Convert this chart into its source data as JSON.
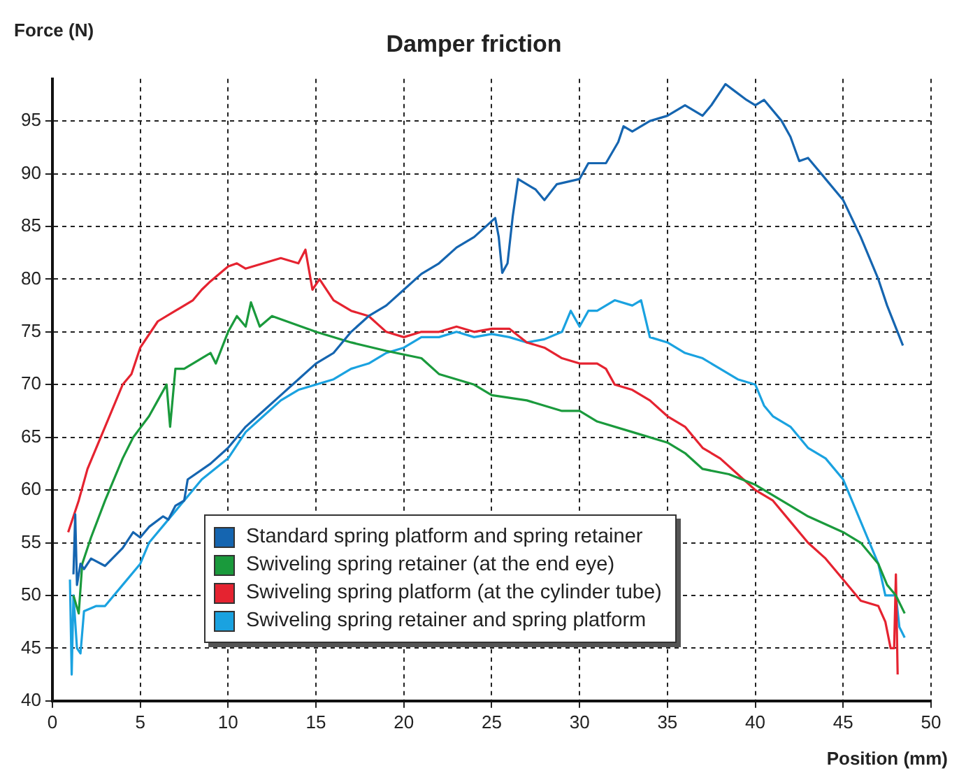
{
  "chart_data": {
    "type": "line",
    "title": "Damper friction",
    "xlabel": "Position (mm)",
    "ylabel": "Force (N)",
    "xlim": [
      0,
      50
    ],
    "xticks": [
      0,
      5,
      10,
      15,
      20,
      25,
      30,
      35,
      40,
      45,
      50
    ],
    "ylim": [
      40,
      99
    ],
    "yticks": [
      40,
      45,
      50,
      55,
      60,
      65,
      70,
      75,
      80,
      85,
      90,
      95
    ],
    "grid": true,
    "legend": "bottom left",
    "marker": "none",
    "line_style": "solid",
    "series": [
      {
        "name": "Standard spring platform and spring retainer",
        "color": "#1565b0",
        "x": [
          1.2,
          1.3,
          1.4,
          1.6,
          1.8,
          2.2,
          3,
          4,
          4.6,
          5,
          5.5,
          6.3,
          6.6,
          7,
          7.5,
          7.7,
          9,
          10,
          11,
          12,
          13,
          14,
          15,
          16,
          17,
          18,
          19,
          20,
          21,
          22,
          23,
          24,
          25.2,
          25.4,
          25.6,
          25.9,
          26.2,
          26.5,
          27.5,
          28,
          28.7,
          30,
          30.5,
          31.5,
          32.2,
          32.5,
          33,
          34,
          35,
          36,
          37,
          37.5,
          38.3,
          38.7,
          39.5,
          40,
          40.5,
          41.5,
          42,
          42.5,
          43,
          44,
          45,
          46,
          47,
          47.5,
          48.4
        ],
        "values": [
          52,
          57.7,
          51,
          53,
          52.5,
          53.5,
          52.8,
          54.5,
          56,
          55.5,
          56.5,
          57.5,
          57.2,
          58.5,
          59,
          61,
          62.5,
          64,
          66,
          67.5,
          69,
          70.5,
          72,
          73,
          75,
          76.5,
          77.5,
          79,
          80.5,
          81.5,
          83,
          84,
          85.8,
          84,
          80.6,
          81.5,
          86,
          89.5,
          88.5,
          87.5,
          89,
          89.5,
          91,
          91,
          93,
          94.5,
          94,
          95,
          95.5,
          96.5,
          95.5,
          96.5,
          98.5,
          98,
          97,
          96.5,
          97,
          95,
          93.5,
          91.2,
          91.5,
          89.5,
          87.5,
          84,
          80,
          77.5,
          73.7
        ]
      },
      {
        "name": "Swiveling spring retainer (at the end eye)",
        "color": "#1a9a3c",
        "x": [
          1.2,
          1.5,
          1.7,
          2.2,
          3,
          4,
          4.6,
          5.5,
          6,
          6.5,
          6.7,
          7,
          7.5,
          8,
          9,
          9.3,
          10,
          10.5,
          11,
          11.3,
          11.8,
          12.5,
          15,
          17,
          19,
          21,
          22,
          24,
          25,
          27,
          29,
          30,
          31,
          33,
          35,
          36,
          37,
          38.5,
          40,
          41,
          42,
          43,
          45,
          46,
          47,
          47.5,
          48,
          48.5
        ],
        "values": [
          50,
          48.3,
          53,
          55.5,
          59,
          63,
          65,
          67,
          68.5,
          70,
          66,
          71.5,
          71.5,
          72,
          73,
          72,
          75,
          76.5,
          75.5,
          77.8,
          75.5,
          76.5,
          75,
          74,
          73.2,
          72.5,
          71,
          70,
          69,
          68.5,
          67.5,
          67.5,
          66.5,
          65.5,
          64.5,
          63.5,
          62,
          61.5,
          60.5,
          59.5,
          58.5,
          57.5,
          56,
          55,
          53,
          51,
          50,
          48.3
        ]
      },
      {
        "name": "Swiveling spring platform (at the cylinder tube)",
        "color": "#e52330",
        "x": [
          0.9,
          1.5,
          2,
          3,
          4,
          4.5,
          5,
          6,
          7,
          8,
          8.5,
          9,
          10,
          10.5,
          11,
          12,
          13,
          14,
          14.4,
          14.8,
          15.2,
          16,
          17,
          18,
          19,
          20,
          21,
          22,
          23,
          24,
          25,
          26,
          27,
          28,
          29,
          30,
          31,
          31.5,
          32,
          33,
          34,
          35,
          36,
          37,
          38,
          39,
          40,
          41,
          42,
          43,
          44,
          45,
          46,
          47,
          47.4,
          47.7,
          47.9,
          48,
          48.1
        ],
        "values": [
          56,
          59,
          62,
          66,
          70,
          71,
          73.5,
          76,
          77,
          78,
          79,
          79.8,
          81.2,
          81.5,
          81,
          81.5,
          82,
          81.5,
          82.8,
          79,
          80,
          78,
          77,
          76.5,
          75,
          74.5,
          75,
          75,
          75.5,
          75,
          75.3,
          75.3,
          74,
          73.5,
          72.5,
          72,
          72,
          71.5,
          70,
          69.5,
          68.5,
          67,
          66,
          64,
          63,
          61.5,
          60,
          59,
          57,
          55,
          53.5,
          51.5,
          49.5,
          49,
          47.5,
          45,
          45,
          52,
          42.5
        ]
      },
      {
        "name": "Swiveling spring retainer and spring platform",
        "color": "#1aa2e0",
        "x": [
          1,
          1.1,
          1.2,
          1.4,
          1.6,
          1.8,
          2.5,
          3,
          4,
          5,
          5.5,
          6.5,
          7.5,
          8.5,
          10,
          11,
          12,
          13,
          14,
          15,
          16,
          17,
          18,
          19,
          20,
          21,
          22,
          23,
          24,
          25,
          26,
          27,
          28,
          29,
          29.5,
          30,
          30.5,
          31,
          32,
          33,
          33.5,
          34,
          35,
          36,
          37,
          38,
          39,
          40,
          40.5,
          41,
          42,
          43,
          44,
          45,
          46,
          47,
          47.4,
          48,
          48.2,
          48.5
        ],
        "values": [
          51.5,
          42.5,
          50,
          45,
          44.5,
          48.5,
          49,
          49,
          51,
          53,
          55,
          57,
          59,
          61,
          63,
          65.5,
          67,
          68.5,
          69.5,
          70,
          70.5,
          71.5,
          72,
          73,
          73.5,
          74.5,
          74.5,
          75,
          74.5,
          74.8,
          74.5,
          74,
          74.3,
          75,
          77,
          75.5,
          77,
          77,
          78,
          77.5,
          78,
          74.5,
          74,
          73,
          72.5,
          71.5,
          70.5,
          70,
          68,
          67,
          66,
          64,
          63,
          61,
          57,
          53,
          50,
          50,
          47,
          46
        ]
      }
    ]
  }
}
